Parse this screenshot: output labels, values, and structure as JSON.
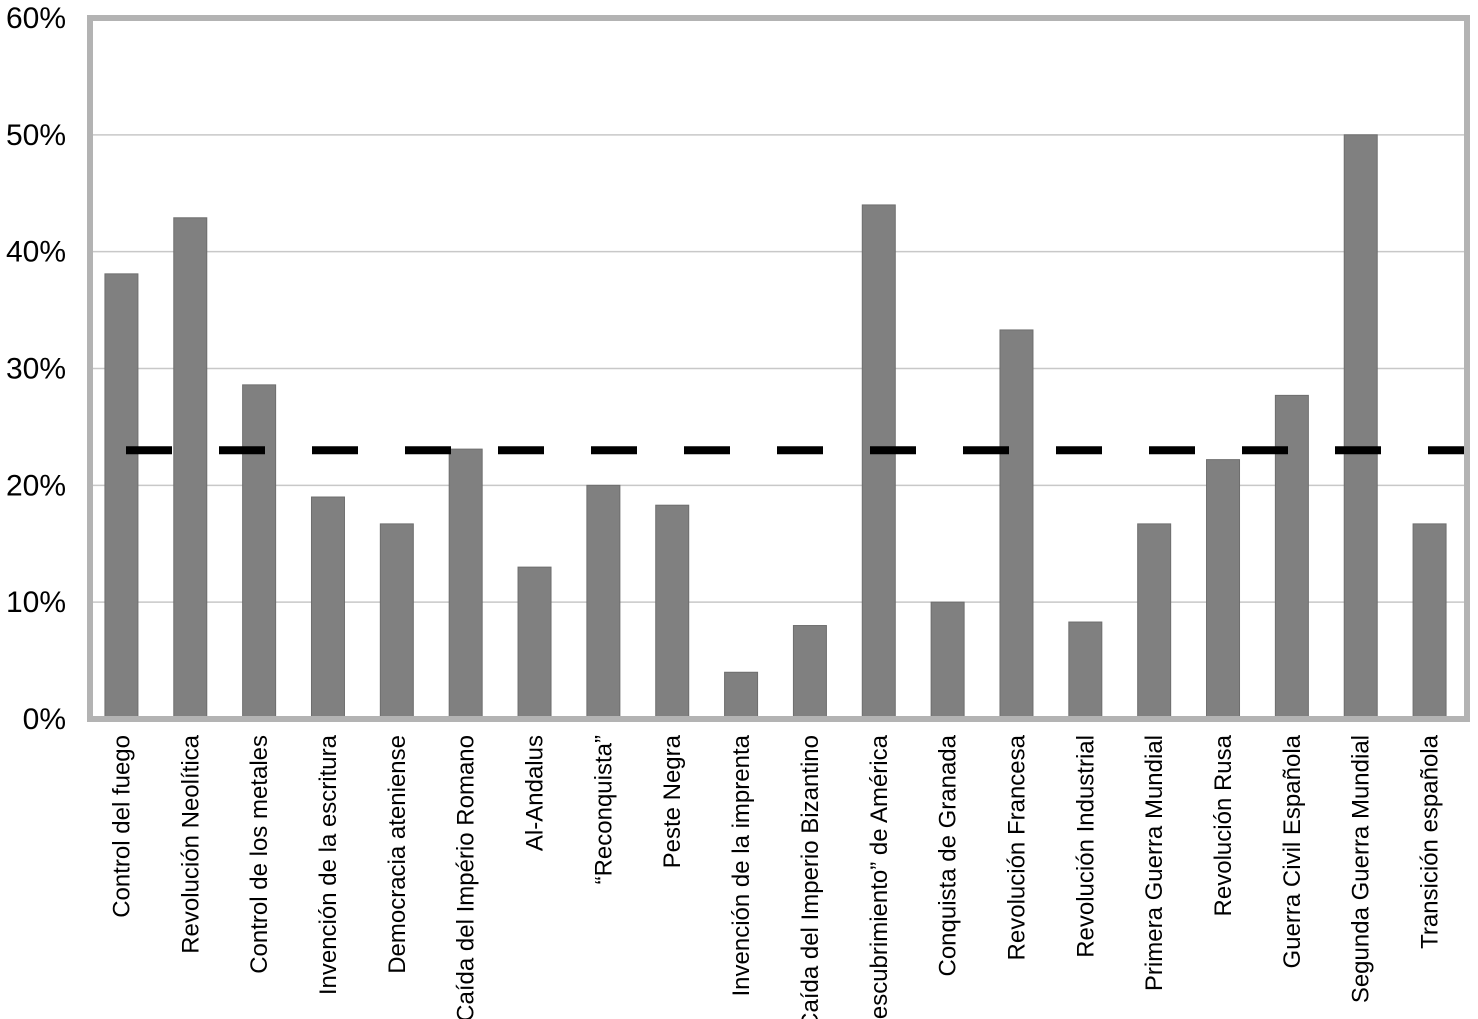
{
  "chart_data": {
    "type": "bar",
    "title": "",
    "xlabel": "",
    "ylabel": "",
    "ylim": [
      0,
      60
    ],
    "y_ticks": [
      "0%",
      "10%",
      "20%",
      "30%",
      "40%",
      "50%",
      "60%"
    ],
    "grid": true,
    "categories": [
      "Control del fuego",
      "Revolución Neolítica",
      "Control de los metales",
      "Invención de la escritura",
      "Democracia ateniense",
      "Caída del Império Romano",
      "Al-Andalus",
      "“Reconquista”",
      "Peste Negra",
      "Invención de la imprenta",
      "Caída del Imperio Bizantino",
      "“Descubrimiento” de América",
      "Conquista de Granada",
      "Revolución Francesa",
      "Revolución Industrial",
      "Primera Guerra Mundial",
      "Revolución Rusa",
      "Guerra Civil Española",
      "Segunda Guerra Mundial",
      "Transición española"
    ],
    "values": [
      38.1,
      42.9,
      28.6,
      19.0,
      16.7,
      23.1,
      13.0,
      20.0,
      18.3,
      4.0,
      8.0,
      44.0,
      10.0,
      33.3,
      8.3,
      16.7,
      22.2,
      27.7,
      50.0,
      16.7
    ],
    "reference_line": {
      "value": 23.0,
      "style": "dashed"
    },
    "colors": {
      "bar": "#808080",
      "frame": "#b3b3b3",
      "grid": "#c8c8c8",
      "reference": "#000000"
    }
  }
}
